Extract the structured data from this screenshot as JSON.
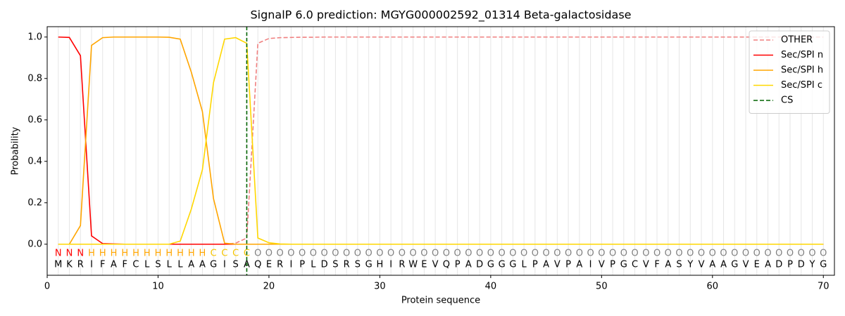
{
  "chart_data": {
    "type": "line",
    "title": "SignalP 6.0 prediction: MGYG000002592_01314 Beta-galactosidase",
    "xlabel": "Protein sequence",
    "ylabel": "Probability",
    "x": [
      1,
      2,
      3,
      4,
      5,
      6,
      7,
      8,
      9,
      10,
      11,
      12,
      13,
      14,
      15,
      16,
      17,
      18,
      19,
      20,
      21,
      22,
      23,
      24,
      25,
      26,
      27,
      28,
      29,
      30,
      31,
      32,
      33,
      34,
      35,
      36,
      37,
      38,
      39,
      40,
      41,
      42,
      43,
      44,
      45,
      46,
      47,
      48,
      49,
      50,
      51,
      52,
      53,
      54,
      55,
      56,
      57,
      58,
      59,
      60,
      61,
      62,
      63,
      64,
      65,
      66,
      67,
      68,
      69,
      70
    ],
    "residues": [
      "M",
      "K",
      "R",
      "I",
      "F",
      "A",
      "F",
      "C",
      "L",
      "S",
      "L",
      "L",
      "A",
      "A",
      "G",
      "I",
      "S",
      "A",
      "Q",
      "E",
      "R",
      "I",
      "P",
      "L",
      "D",
      "S",
      "R",
      "S",
      "G",
      "H",
      "I",
      "R",
      "W",
      "E",
      "V",
      "Q",
      "P",
      "A",
      "D",
      "G",
      "G",
      "G",
      "L",
      "P",
      "A",
      "V",
      "P",
      "A",
      "I",
      "V",
      "P",
      "G",
      "C",
      "V",
      "F",
      "A",
      "S",
      "Y",
      "V",
      "A",
      "A",
      "G",
      "V",
      "E",
      "A",
      "D",
      "P",
      "D",
      "Y",
      "G"
    ],
    "predicted": [
      "N",
      "N",
      "N",
      "H",
      "H",
      "H",
      "H",
      "H",
      "H",
      "H",
      "H",
      "H",
      "H",
      "H",
      "C",
      "C",
      "C",
      "C",
      "O",
      "O",
      "O",
      "O",
      "O",
      "O",
      "O",
      "O",
      "O",
      "O",
      "O",
      "O",
      "O",
      "O",
      "O",
      "O",
      "O",
      "O",
      "O",
      "O",
      "O",
      "O",
      "O",
      "O",
      "O",
      "O",
      "O",
      "O",
      "O",
      "O",
      "O",
      "O",
      "O",
      "O",
      "O",
      "O",
      "O",
      "O",
      "O",
      "O",
      "O",
      "O",
      "O",
      "O",
      "O",
      "O",
      "O",
      "O",
      "O",
      "O",
      "O",
      "O"
    ],
    "predicted_colors": {
      "N": "#ff0000",
      "H": "#ffa500",
      "C": "#f5c400",
      "O": "#808080"
    },
    "series": [
      {
        "name": "OTHER",
        "color": "#f08080",
        "style": "dashed",
        "values": [
          0,
          0,
          0,
          0,
          0,
          0,
          0,
          0,
          0,
          0,
          0,
          0,
          0,
          0,
          0,
          0,
          0.005,
          0.03,
          0.97,
          0.993,
          0.997,
          0.998,
          0.999,
          0.999,
          1,
          1,
          1,
          1,
          1,
          1,
          1,
          1,
          1,
          1,
          1,
          1,
          1,
          1,
          1,
          1,
          1,
          1,
          1,
          1,
          1,
          1,
          1,
          1,
          1,
          1,
          1,
          1,
          1,
          1,
          1,
          1,
          1,
          1,
          1,
          1,
          1,
          1,
          1,
          1,
          1,
          1,
          1,
          1,
          1,
          1
        ]
      },
      {
        "name": "Sec/SPI n",
        "color": "#ff0000",
        "style": "solid",
        "values": [
          1.0,
          0.998,
          0.91,
          0.04,
          0.003,
          0.001,
          0,
          0,
          0,
          0,
          0,
          0,
          0,
          0,
          0,
          0,
          0,
          0,
          0,
          0,
          0,
          0,
          0,
          0,
          0,
          0,
          0,
          0,
          0,
          0,
          0,
          0,
          0,
          0,
          0,
          0,
          0,
          0,
          0,
          0,
          0,
          0,
          0,
          0,
          0,
          0,
          0,
          0,
          0,
          0,
          0,
          0,
          0,
          0,
          0,
          0,
          0,
          0,
          0,
          0,
          0,
          0,
          0,
          0,
          0,
          0,
          0,
          0,
          0,
          0
        ]
      },
      {
        "name": "Sec/SPI h",
        "color": "#ffa500",
        "style": "solid",
        "values": [
          0,
          0,
          0.09,
          0.96,
          0.997,
          1.0,
          1.0,
          1.0,
          1.0,
          1.0,
          0.999,
          0.99,
          0.83,
          0.64,
          0.22,
          0.005,
          0,
          0,
          0,
          0,
          0,
          0,
          0,
          0,
          0,
          0,
          0,
          0,
          0,
          0,
          0,
          0,
          0,
          0,
          0,
          0,
          0,
          0,
          0,
          0,
          0,
          0,
          0,
          0,
          0,
          0,
          0,
          0,
          0,
          0,
          0,
          0,
          0,
          0,
          0,
          0,
          0,
          0,
          0,
          0,
          0,
          0,
          0,
          0,
          0,
          0,
          0,
          0,
          0,
          0
        ]
      },
      {
        "name": "Sec/SPI c",
        "color": "#ffd700",
        "style": "solid",
        "values": [
          0,
          0,
          0,
          0,
          0,
          0,
          0,
          0,
          0,
          0,
          0,
          0.015,
          0.17,
          0.36,
          0.78,
          0.99,
          0.997,
          0.97,
          0.03,
          0.007,
          0.001,
          0,
          0,
          0,
          0,
          0,
          0,
          0,
          0,
          0,
          0,
          0,
          0,
          0,
          0,
          0,
          0,
          0,
          0,
          0,
          0,
          0,
          0,
          0,
          0,
          0,
          0,
          0,
          0,
          0,
          0,
          0,
          0,
          0,
          0,
          0,
          0,
          0,
          0,
          0,
          0,
          0,
          0,
          0,
          0,
          0,
          0,
          0,
          0,
          0
        ]
      }
    ],
    "cs": {
      "name": "CS",
      "x": 18,
      "color": "#006400"
    },
    "xlim": [
      0,
      71
    ],
    "ylim": [
      -0.15,
      1.05
    ],
    "xticks": [
      0,
      10,
      20,
      30,
      40,
      50,
      60,
      70
    ],
    "yticks": [
      {
        "value": 0,
        "label": "0.0"
      },
      0.2,
      0.4,
      0.6,
      0.8,
      {
        "value": 1,
        "label": "1.0"
      }
    ],
    "grid": true,
    "legend": "upper right"
  }
}
